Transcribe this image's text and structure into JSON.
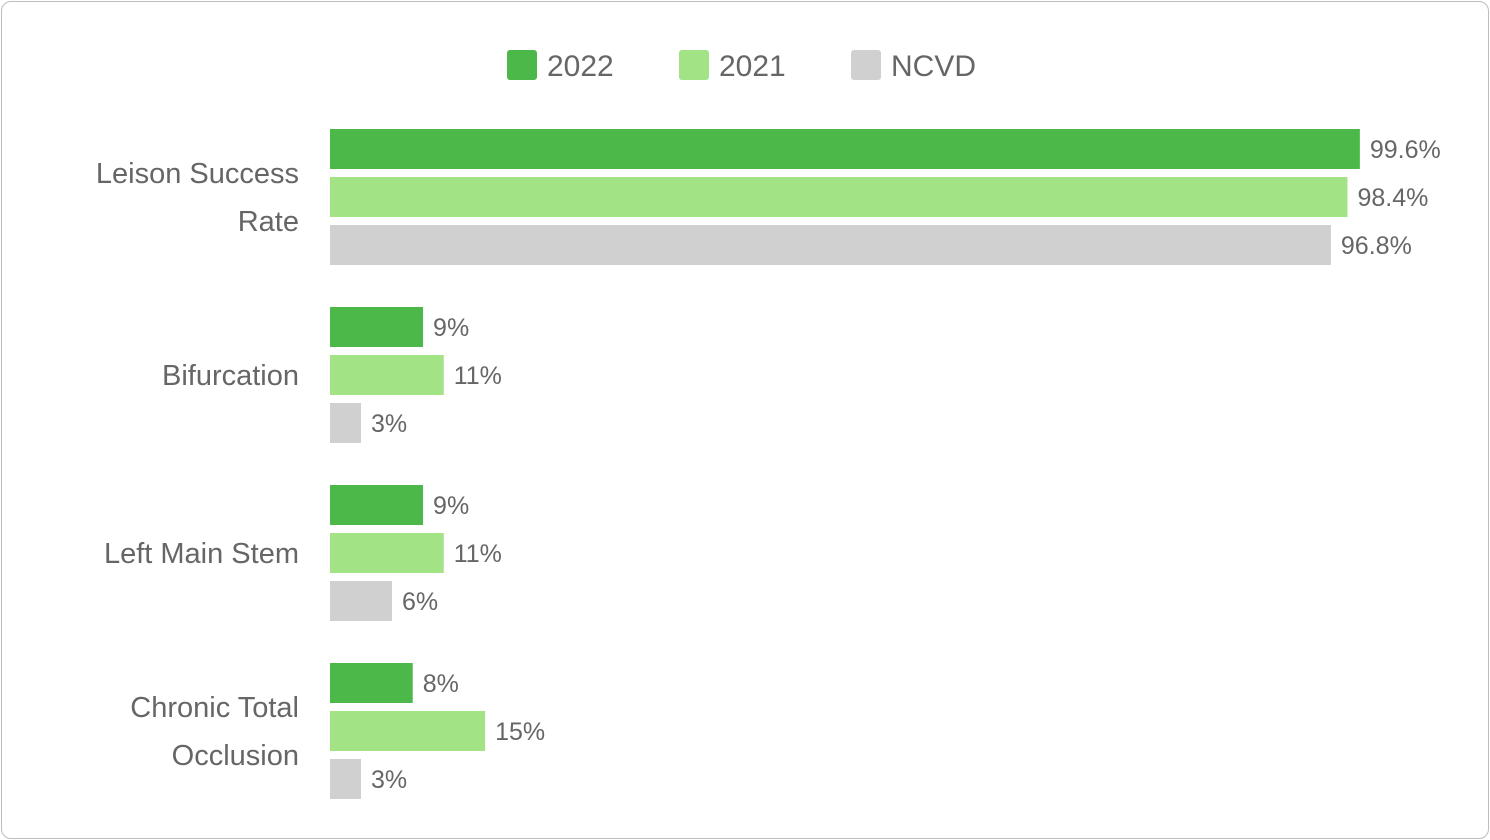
{
  "chart_data": {
    "type": "bar",
    "orientation": "horizontal",
    "legend_position": "top",
    "grid": false,
    "xlim": [
      0,
      100
    ],
    "categories": [
      "Leison Success Rate",
      "Bifurcation",
      "Left Main Stem",
      "Chronic Total Occlusion"
    ],
    "series": [
      {
        "name": "2022",
        "color": "#4cb84a",
        "values": [
          99.6,
          9,
          9,
          8
        ],
        "labels": [
          "99.6%",
          "9%",
          "9%",
          "8%"
        ]
      },
      {
        "name": "2021",
        "color": "#a2e385",
        "values": [
          98.4,
          11,
          11,
          15
        ],
        "labels": [
          "98.4%",
          "11%",
          "11%",
          "15%"
        ]
      },
      {
        "name": "NCVD",
        "color": "#d0d0d0",
        "values": [
          96.8,
          3,
          6,
          3
        ],
        "labels": [
          "96.8%",
          "3%",
          "6%",
          "3%"
        ]
      }
    ]
  }
}
